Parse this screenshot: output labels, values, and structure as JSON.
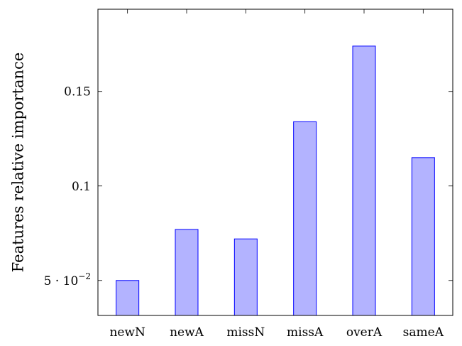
{
  "chart_data": {
    "type": "bar",
    "title": "",
    "xlabel": "",
    "ylabel": "Features relative importance",
    "categories": [
      "newN",
      "newA",
      "missN",
      "missA",
      "overA",
      "sameA"
    ],
    "values": [
      0.05,
      0.077,
      0.072,
      0.134,
      0.174,
      0.115
    ],
    "ylim": [
      0.0315,
      0.1935
    ],
    "yticks": [
      {
        "value": 0.05,
        "label": "5 · 10",
        "exp": "−2"
      },
      {
        "value": 0.1,
        "label": "0.1"
      },
      {
        "value": 0.15,
        "label": "0.15"
      }
    ],
    "bar_fill": "#b3b3ff",
    "bar_stroke": "#0000ff",
    "grid": false,
    "legend": "none"
  }
}
